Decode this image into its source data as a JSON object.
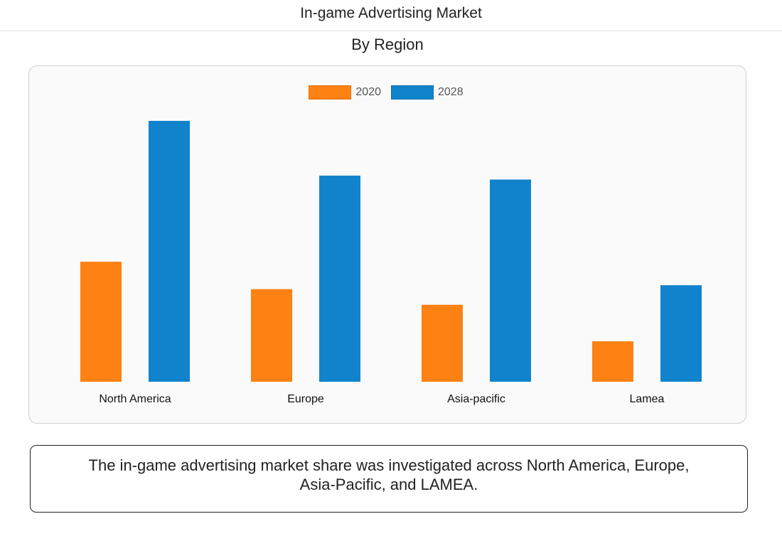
{
  "header": {
    "title": "In-game Advertising Market"
  },
  "caption": {
    "text": "The in-game advertising market share was investigated across North America, Europe, Asia-Pacific, and LAMEA."
  },
  "colors": {
    "series_2020": "#fd8113",
    "series_2028": "#1183cc"
  },
  "chart_data": {
    "type": "bar",
    "title": "By Region",
    "categories": [
      "North America",
      "Europe",
      "Asia-pacific",
      "Lamea"
    ],
    "series": [
      {
        "name": "2020",
        "values": [
          46,
          35.5,
          29.5,
          15.5
        ]
      },
      {
        "name": "2028",
        "values": [
          100,
          79,
          77.5,
          37
        ]
      }
    ],
    "xlabel": "",
    "ylabel": "",
    "ylim": [
      0,
      100
    ],
    "grid": false,
    "legend": "top-center",
    "value_axis": "hidden"
  }
}
